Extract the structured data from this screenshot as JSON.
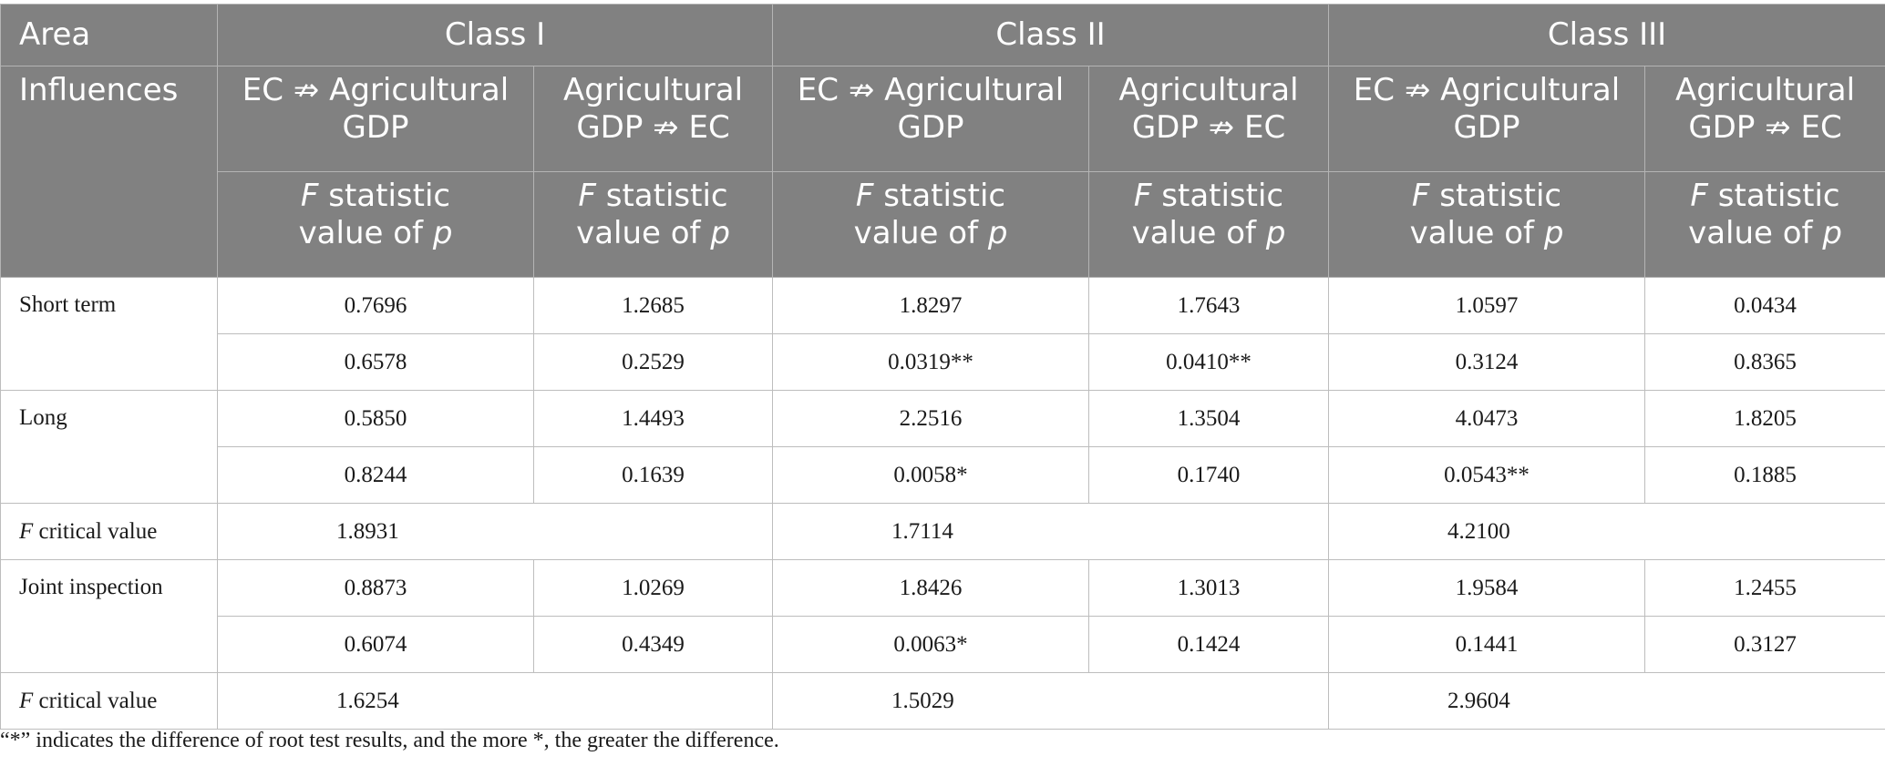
{
  "header": {
    "area_label": "Area",
    "influences_label": "Influences",
    "classes": [
      "Class I",
      "Class II",
      "Class III"
    ],
    "direction_1_line1": "EC ⇏ Agricultural",
    "direction_1_line2": "GDP",
    "direction_2_line1": "Agricultural",
    "direction_2_line2": "GDP ⇏ EC",
    "stat_italic": "F",
    "stat_rest": " statistic",
    "pvalue_pre": "value of ",
    "pvalue_italic": "p"
  },
  "rows": {
    "short_term": {
      "label": "Short term",
      "f": [
        "0.7696",
        "1.2685",
        "1.8297",
        "1.7643",
        "1.0597",
        "0.0434"
      ],
      "p": [
        "0.6578",
        "0.2529",
        "0.0319**",
        "0.0410**",
        "0.3124",
        "0.8365"
      ]
    },
    "long": {
      "label": "Long",
      "f": [
        "0.5850",
        "1.4493",
        "2.2516",
        "1.3504",
        "4.0473",
        "1.8205"
      ],
      "p": [
        "0.8244",
        "0.1639",
        "0.0058*",
        "0.1740",
        "0.0543**",
        "0.1885"
      ]
    },
    "critical_1": {
      "label_italic": "F",
      "label_rest": " critical value",
      "values": [
        "1.8931",
        "1.7114",
        "4.2100"
      ]
    },
    "joint": {
      "label": "Joint inspection",
      "f": [
        "0.8873",
        "1.0269",
        "1.8426",
        "1.3013",
        "1.9584",
        "1.2455"
      ],
      "p": [
        "0.6074",
        "0.4349",
        "0.0063*",
        "0.1424",
        "0.1441",
        "0.3127"
      ]
    },
    "critical_2": {
      "label_italic": "F",
      "label_rest": " critical value",
      "values": [
        "1.6254",
        "1.5029",
        "2.9604"
      ]
    }
  },
  "footnote": "“*” indicates the difference of root test results, and the more *, the greater the difference."
}
